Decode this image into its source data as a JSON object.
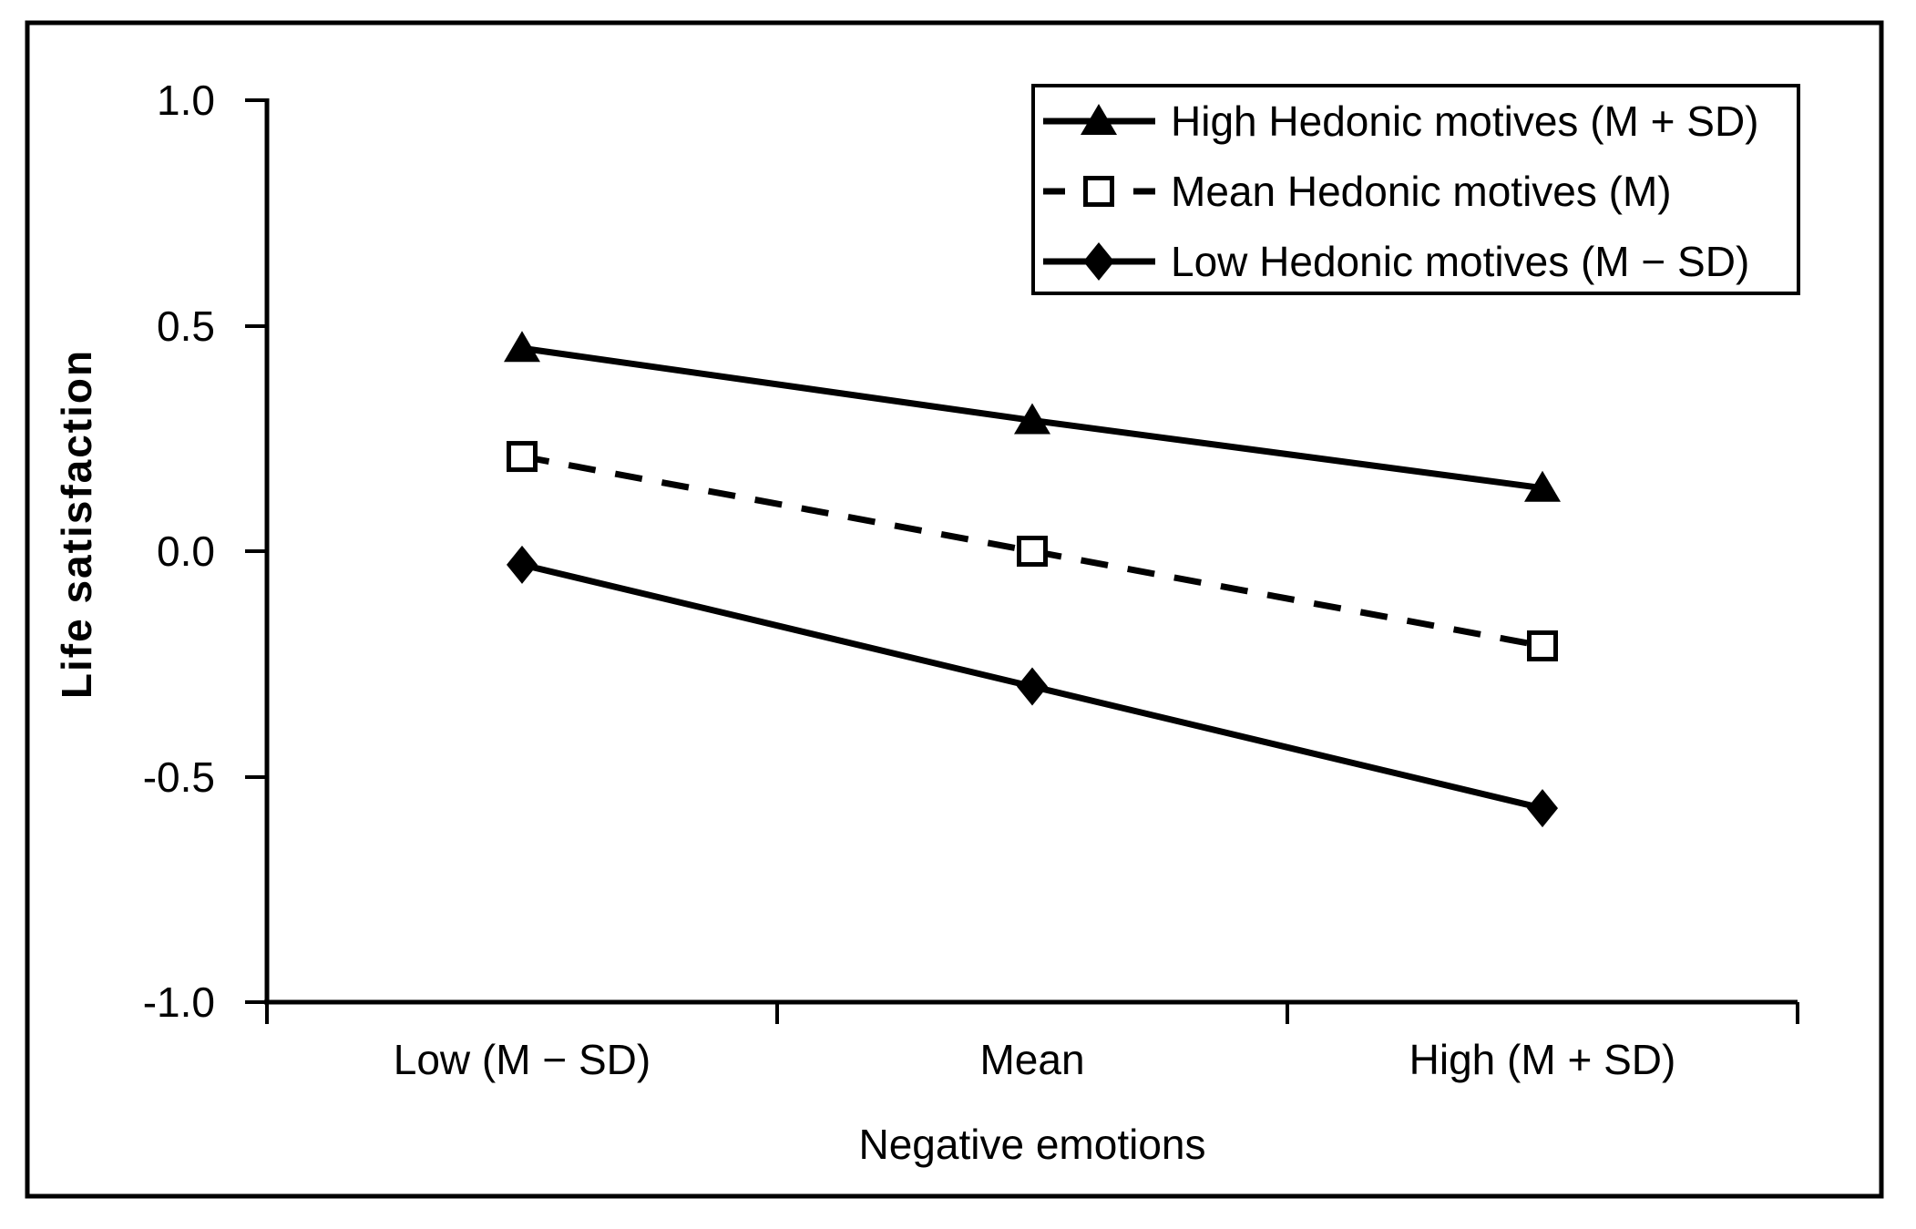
{
  "figure": {
    "background_color": "#ffffff",
    "ink_color": "#000000"
  },
  "chart_data": {
    "type": "line",
    "title": "",
    "xlabel": "Negative emotions",
    "ylabel": "Life satisfaction",
    "categories": [
      "Low (M − SD)",
      "Mean",
      "High (M + SD)"
    ],
    "series": [
      {
        "name": "High Hedonic motives (M + SD)",
        "values": [
          0.45,
          0.29,
          0.14
        ],
        "marker": "filled-triangle",
        "line_style": "solid"
      },
      {
        "name": "Mean Hedonic motives (M)",
        "values": [
          0.21,
          0.0,
          -0.21
        ],
        "marker": "open-square",
        "line_style": "dashed"
      },
      {
        "name": "Low Hedonic motives (M − SD)",
        "values": [
          -0.03,
          -0.3,
          -0.57
        ],
        "marker": "filled-diamond",
        "line_style": "solid"
      }
    ],
    "ylim": [
      -1.0,
      1.0
    ],
    "ytick_labels": [
      "1.0",
      "0.5",
      "0.0",
      "-0.5",
      "-1.0"
    ],
    "ytick_values": [
      1.0,
      0.5,
      0.0,
      -0.5,
      -1.0
    ],
    "xaxis_tick_style": "category-boundaries",
    "legend_position": "top-right-inside",
    "grid": false
  }
}
